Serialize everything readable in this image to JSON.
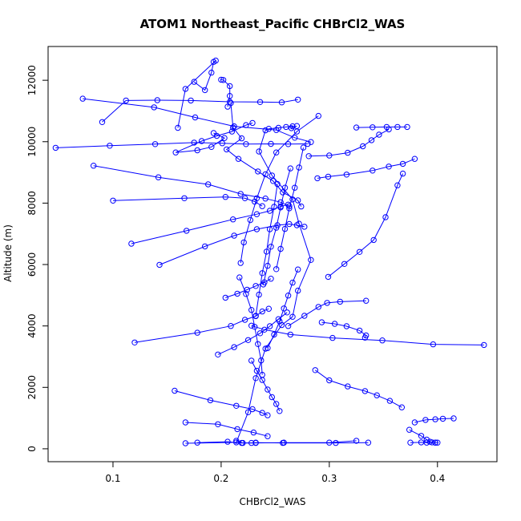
{
  "chart_data": {
    "type": "line",
    "title": "ATOM1 Northeast_Pacific CHBrCl2_WAS",
    "xlabel": "CHBrCl2_WAS",
    "ylabel": "Altitude (m)",
    "xlim": [
      0.04,
      0.455
    ],
    "ylim": [
      -420,
      13100
    ],
    "xticks": [
      0.1,
      0.2,
      0.3,
      0.4
    ],
    "xtick_labels": [
      "0.1",
      "0.2",
      "0.3",
      "0.4"
    ],
    "yticks": [
      0,
      2000,
      4000,
      6000,
      8000,
      10000,
      12000
    ],
    "ytick_labels": [
      "0",
      "2000",
      "4000",
      "6000",
      "8000",
      "10000",
      "12000"
    ],
    "color": "#0000ff",
    "grid": false,
    "series": [
      {
        "x": [
          0.167,
          0.214,
          0.225,
          0.232,
          0.241,
          0.256,
          0.266,
          0.271,
          0.283,
          0.272,
          0.266,
          0.247,
          0.235,
          0.241,
          0.244,
          0.253,
          0.26,
          0.266,
          0.265,
          0.27
        ],
        "y": [
          180,
          210,
          1190,
          2300,
          3260,
          4030,
          4300,
          5150,
          6150,
          7330,
          8120,
          8900,
          9680,
          10370,
          10420,
          10450,
          10480,
          10500,
          10440,
          10510
        ]
      },
      {
        "x": [
          0.175,
          0.185,
          0.191,
          0.193,
          0.195,
          0.167,
          0.16
        ],
        "y": [
          11950,
          11680,
          12250,
          12600,
          12640,
          11720,
          10450
        ]
      },
      {
        "x": [
          0.193,
          0.203,
          0.191,
          0.178,
          0.158,
          0.182,
          0.196,
          0.21,
          0.223,
          0.229
        ],
        "y": [
          10280,
          10120,
          9830,
          9720,
          9650,
          10020,
          10190,
          10330,
          10540,
          10610
        ]
      },
      {
        "x": [
          0.2,
          0.202,
          0.208,
          0.208,
          0.206
        ],
        "y": [
          12020,
          12010,
          11810,
          11490,
          11140
        ]
      },
      {
        "x": [
          0.209,
          0.211,
          0.219,
          0.205,
          0.216,
          0.234,
          0.248,
          0.257,
          0.271,
          0.274
        ],
        "y": [
          11260,
          10460,
          10110,
          9750,
          9440,
          9030,
          8720,
          8350,
          8090,
          7890
        ]
      },
      {
        "x": [
          0.072,
          0.138,
          0.176,
          0.212,
          0.251,
          0.268,
          0.283
        ],
        "y": [
          11400,
          11120,
          10790,
          10500,
          10380,
          10130,
          9990
        ]
      },
      {
        "x": [
          0.09,
          0.112,
          0.141,
          0.172,
          0.208,
          0.236,
          0.256,
          0.271
        ],
        "y": [
          10640,
          11340,
          11350,
          11340,
          11300,
          11290,
          11280,
          11370
        ]
      },
      {
        "x": [
          0.047,
          0.097,
          0.139,
          0.175,
          0.201,
          0.223,
          0.246,
          0.262,
          0.28
        ],
        "y": [
          9800,
          9870,
          9920,
          9970,
          9950,
          9920,
          9930,
          9920,
          9930
        ]
      },
      {
        "x": [
          0.082,
          0.142,
          0.188,
          0.218,
          0.241,
          0.255,
          0.263
        ],
        "y": [
          9220,
          8840,
          8610,
          8300,
          8150,
          8030,
          7900
        ]
      },
      {
        "x": [
          0.1,
          0.166,
          0.204,
          0.222,
          0.231,
          0.238
        ],
        "y": [
          8080,
          8160,
          8200,
          8160,
          8050,
          7900
        ]
      },
      {
        "x": [
          0.117,
          0.168,
          0.211,
          0.233,
          0.245,
          0.255,
          0.262
        ],
        "y": [
          6680,
          7100,
          7470,
          7640,
          7750,
          7890,
          7950
        ]
      },
      {
        "x": [
          0.143,
          0.185,
          0.212,
          0.233,
          0.252,
          0.263,
          0.27,
          0.277
        ],
        "y": [
          5990,
          6590,
          6940,
          7150,
          7280,
          7320,
          7280,
          7230
        ]
      },
      {
        "x": [
          0.12,
          0.178,
          0.209,
          0.222,
          0.232,
          0.238,
          0.244
        ],
        "y": [
          3460,
          3780,
          4000,
          4200,
          4320,
          4470,
          4560
        ]
      },
      {
        "x": [
          0.157,
          0.19,
          0.214,
          0.229,
          0.238,
          0.243
        ],
        "y": [
          1890,
          1580,
          1400,
          1290,
          1170,
          1090
        ]
      },
      {
        "x": [
          0.167,
          0.197,
          0.215,
          0.23,
          0.243
        ],
        "y": [
          860,
          800,
          640,
          530,
          410
        ]
      },
      {
        "x": [
          0.178,
          0.206,
          0.219,
          0.232,
          0.258,
          0.3,
          0.325
        ],
        "y": [
          200,
          230,
          190,
          190,
          200,
          200,
          260
        ]
      },
      {
        "x": [
          0.214,
          0.22,
          0.228,
          0.232,
          0.257,
          0.306,
          0.336
        ],
        "y": [
          260,
          190,
          190,
          200,
          190,
          190,
          200
        ]
      },
      {
        "x": [
          0.262,
          0.277,
          0.29,
          0.298,
          0.31,
          0.334
        ],
        "y": [
          4000,
          4330,
          4620,
          4750,
          4790,
          4820
        ]
      },
      {
        "x": [
          0.443,
          0.396,
          0.349,
          0.303,
          0.264,
          0.24,
          0.228
        ],
        "y": [
          3380,
          3400,
          3530,
          3610,
          3720,
          3880,
          4010
        ]
      },
      {
        "x": [
          0.293,
          0.305,
          0.316,
          0.328,
          0.334,
          0.333
        ],
        "y": [
          4120,
          4070,
          3990,
          3850,
          3690,
          3620
        ]
      },
      {
        "x": [
          0.287,
          0.3,
          0.317,
          0.333,
          0.344,
          0.356,
          0.367
        ],
        "y": [
          2560,
          2230,
          2030,
          1880,
          1740,
          1560,
          1350
        ]
      },
      {
        "x": [
          0.379,
          0.389,
          0.398,
          0.405,
          0.415
        ],
        "y": [
          860,
          940,
          960,
          980,
          990
        ]
      },
      {
        "x": [
          0.374,
          0.385,
          0.39,
          0.393,
          0.398,
          0.4
        ],
        "y": [
          620,
          420,
          300,
          230,
          200,
          200
        ]
      },
      {
        "x": [
          0.375,
          0.385,
          0.39,
          0.395,
          0.398
        ],
        "y": [
          200,
          210,
          200,
          210,
          200
        ]
      },
      {
        "x": [
          0.299,
          0.314,
          0.328,
          0.341,
          0.352,
          0.363,
          0.368
        ],
        "y": [
          5600,
          6020,
          6410,
          6800,
          7540,
          8580,
          8960
        ]
      },
      {
        "x": [
          0.355,
          0.346,
          0.339,
          0.331,
          0.317,
          0.3,
          0.281
        ],
        "y": [
          10400,
          10230,
          10050,
          9850,
          9640,
          9550,
          9530
        ]
      },
      {
        "x": [
          0.379,
          0.368,
          0.355,
          0.34,
          0.316,
          0.299,
          0.289
        ],
        "y": [
          9440,
          9280,
          9190,
          9060,
          8930,
          8860,
          8810
        ]
      },
      {
        "x": [
          0.325,
          0.34,
          0.353,
          0.363,
          0.372
        ],
        "y": [
          10460,
          10470,
          10480,
          10480,
          10480
        ]
      },
      {
        "x": [
          0.29,
          0.27,
          0.251,
          0.241,
          0.233,
          0.227,
          0.221,
          0.218
        ],
        "y": [
          10840,
          10330,
          9650,
          8940,
          8160,
          7450,
          6720,
          6050
        ]
      },
      {
        "x": [
          0.217,
          0.223,
          0.228,
          0.231,
          0.234,
          0.237,
          0.238
        ],
        "y": [
          5580,
          5040,
          4520,
          3970,
          3410,
          2880,
          2410
        ]
      },
      {
        "x": [
          0.228,
          0.233,
          0.238,
          0.243,
          0.247,
          0.251,
          0.254
        ],
        "y": [
          2870,
          2540,
          2240,
          1930,
          1680,
          1460,
          1230
        ]
      },
      {
        "x": [
          0.252,
          0.249,
          0.245,
          0.242,
          0.238,
          0.235,
          0.232
        ],
        "y": [
          8620,
          7880,
          7150,
          6420,
          5720,
          5020,
          4330
        ]
      },
      {
        "x": [
          0.264,
          0.259,
          0.255,
          0.251,
          0.246,
          0.243,
          0.239
        ],
        "y": [
          9130,
          8500,
          7860,
          7200,
          6580,
          5960,
          5350
        ]
      },
      {
        "x": [
          0.276,
          0.272,
          0.268,
          0.263,
          0.259,
          0.255,
          0.251
        ],
        "y": [
          9810,
          9160,
          8500,
          7830,
          7160,
          6510,
          5850
        ]
      },
      {
        "x": [
          0.243,
          0.249,
          0.254,
          0.258,
          0.262,
          0.266,
          0.271
        ],
        "y": [
          3280,
          3720,
          4150,
          4570,
          4990,
          5410,
          5840
        ]
      },
      {
        "x": [
          0.197,
          0.212,
          0.225,
          0.236,
          0.245,
          0.253,
          0.261
        ],
        "y": [
          3070,
          3310,
          3540,
          3760,
          3990,
          4220,
          4440
        ]
      },
      {
        "x": [
          0.204,
          0.215,
          0.224,
          0.232,
          0.24,
          0.246
        ],
        "y": [
          4920,
          5050,
          5180,
          5300,
          5420,
          5540
        ]
      }
    ]
  }
}
